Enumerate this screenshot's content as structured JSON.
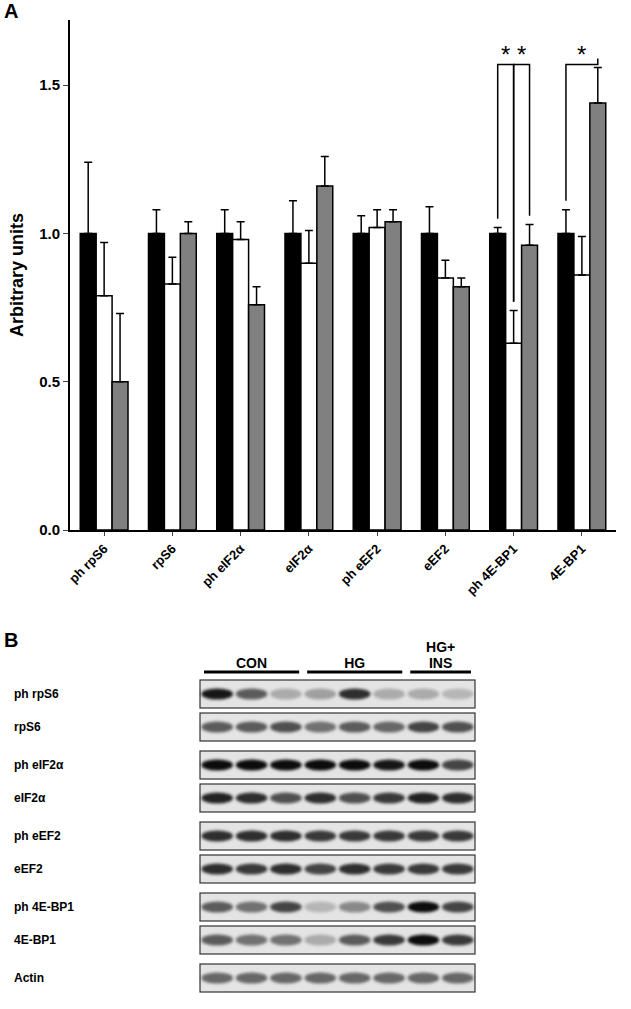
{
  "panel_labels": [
    "A",
    "B"
  ],
  "chart_data": {
    "type": "bar",
    "ylabel": "Arbitrary units",
    "categories": [
      "ph rpS6",
      "rpS6",
      "ph eIF2α",
      "eIF2α",
      "ph eEF2",
      "eEF2",
      "ph 4E-BP1",
      "4E-BP1"
    ],
    "series": [
      {
        "color": "#000000",
        "values": [
          1.0,
          1.0,
          1.0,
          1.0,
          1.0,
          1.0,
          1.0,
          1.0
        ],
        "errors": [
          0.24,
          0.08,
          0.08,
          0.11,
          0.06,
          0.09,
          0.02,
          0.08
        ]
      },
      {
        "color": "#ffffff",
        "values": [
          0.79,
          0.83,
          0.98,
          0.9,
          1.02,
          0.85,
          0.63,
          0.86
        ],
        "errors": [
          0.18,
          0.09,
          0.06,
          0.11,
          0.06,
          0.06,
          0.11,
          0.13
        ]
      },
      {
        "color": "#808080",
        "values": [
          0.5,
          1.0,
          0.76,
          1.16,
          1.04,
          0.82,
          0.96,
          1.44
        ],
        "errors": [
          0.23,
          0.04,
          0.06,
          0.1,
          0.04,
          0.03,
          0.07,
          0.12
        ]
      }
    ],
    "ylim": [
      0,
      1.72
    ],
    "yticks": [
      {
        "value": 0,
        "label": "0.0"
      },
      0.5,
      {
        "value": 1,
        "label": "1.0"
      },
      1.5
    ],
    "significance": [
      {
        "category": "ph 4E-BP1",
        "from": 0,
        "to": 1,
        "y": 1.57,
        "label": "*"
      },
      {
        "category": "ph 4E-BP1",
        "from": 1,
        "to": 2,
        "y": 1.57,
        "label": "*"
      },
      {
        "category": "4E-BP1",
        "from": 0,
        "to": 2,
        "y": 1.57,
        "label": "*"
      }
    ]
  },
  "blot": {
    "groups": [
      {
        "lines": [
          "CON"
        ],
        "lanes": 3
      },
      {
        "lines": [
          "HG"
        ],
        "lanes": 3
      },
      {
        "lines": [
          "HG+",
          "INS"
        ],
        "lanes": 2
      }
    ],
    "rows": [
      {
        "label": "ph rpS6",
        "intensity": [
          0.9,
          0.6,
          0.25,
          0.3,
          0.8,
          0.25,
          0.25,
          0.2
        ]
      },
      {
        "label": "rpS6",
        "intensity": [
          0.6,
          0.6,
          0.65,
          0.5,
          0.6,
          0.55,
          0.7,
          0.65
        ]
      },
      {
        "label": "ph eIF2α",
        "intensity": [
          0.95,
          0.95,
          0.95,
          0.95,
          0.95,
          0.9,
          0.95,
          0.7
        ]
      },
      {
        "label": "eIF2α",
        "intensity": [
          0.85,
          0.8,
          0.65,
          0.8,
          0.65,
          0.75,
          0.85,
          0.8
        ]
      },
      {
        "label": "ph eEF2",
        "intensity": [
          0.8,
          0.8,
          0.8,
          0.75,
          0.75,
          0.75,
          0.75,
          0.75
        ]
      },
      {
        "label": "eEF2",
        "intensity": [
          0.8,
          0.75,
          0.8,
          0.7,
          0.8,
          0.75,
          0.75,
          0.75
        ]
      },
      {
        "label": "ph 4E-BP1",
        "intensity": [
          0.6,
          0.5,
          0.7,
          0.2,
          0.4,
          0.65,
          0.95,
          0.7
        ]
      },
      {
        "label": "4E-BP1",
        "intensity": [
          0.6,
          0.5,
          0.5,
          0.25,
          0.6,
          0.75,
          0.95,
          0.75
        ]
      },
      {
        "label": "Actin",
        "intensity": [
          0.55,
          0.55,
          0.55,
          0.55,
          0.55,
          0.55,
          0.55,
          0.55
        ]
      }
    ]
  }
}
